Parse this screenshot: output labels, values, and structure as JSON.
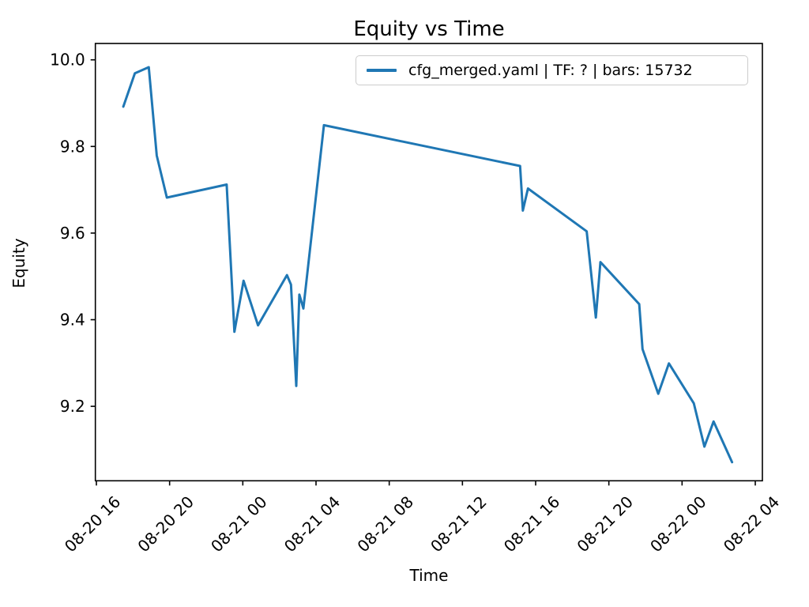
{
  "figure": {
    "background_color": "#ffffff",
    "spine_color": "#000000",
    "tick_label_color": "#000000"
  },
  "chart_data": {
    "type": "line",
    "title": "Equity vs Time",
    "xlabel": "Time",
    "ylabel": "Equity",
    "grid": false,
    "legend": {
      "position": "upper right",
      "entries": [
        {
          "label": "cfg_merged.yaml | TF: ? | bars: 15732",
          "color": "#1f77b4"
        }
      ]
    },
    "x_axis": {
      "unit": "hours since 08-20 16:00",
      "tick_hours": [
        0,
        4,
        8,
        12,
        16,
        20,
        24,
        28,
        32,
        36
      ],
      "tick_labels": [
        "08-20 16",
        "08-20 20",
        "08-21 00",
        "08-21 04",
        "08-21 08",
        "08-21 12",
        "08-21 16",
        "08-21 20",
        "08-22 00",
        "08-22 04"
      ],
      "tick_rotation_deg": 45,
      "xlim_hours": [
        -0.06,
        36.39
      ]
    },
    "y_axis": {
      "tick_values": [
        10.0,
        9.8,
        9.6,
        9.4,
        9.2
      ],
      "tick_labels": [
        "10.0",
        "9.8",
        "9.6",
        "9.4",
        "9.2"
      ],
      "ylim": [
        9.028,
        10.038
      ]
    },
    "series": [
      {
        "name": "cfg_merged.yaml | TF: ? | bars: 15732",
        "color": "#1f77b4",
        "line_width": 3,
        "points_hours_equity": [
          [
            1.47,
            9.892
          ],
          [
            2.1,
            9.969
          ],
          [
            2.86,
            9.983
          ],
          [
            3.3,
            9.779
          ],
          [
            3.85,
            9.682
          ],
          [
            7.12,
            9.712
          ],
          [
            7.54,
            9.372
          ],
          [
            8.04,
            9.49
          ],
          [
            8.83,
            9.387
          ],
          [
            10.41,
            9.503
          ],
          [
            10.63,
            9.481
          ],
          [
            10.92,
            9.247
          ],
          [
            11.09,
            9.458
          ],
          [
            11.31,
            9.426
          ],
          [
            12.43,
            9.849
          ],
          [
            23.15,
            9.755
          ],
          [
            23.3,
            9.652
          ],
          [
            23.58,
            9.703
          ],
          [
            26.79,
            9.604
          ],
          [
            27.29,
            9.405
          ],
          [
            27.54,
            9.533
          ],
          [
            29.66,
            9.436
          ],
          [
            29.84,
            9.332
          ],
          [
            30.7,
            9.229
          ],
          [
            31.28,
            9.299
          ],
          [
            32.64,
            9.207
          ],
          [
            33.22,
            9.107
          ],
          [
            33.72,
            9.165
          ],
          [
            34.73,
            9.071
          ]
        ]
      }
    ]
  }
}
